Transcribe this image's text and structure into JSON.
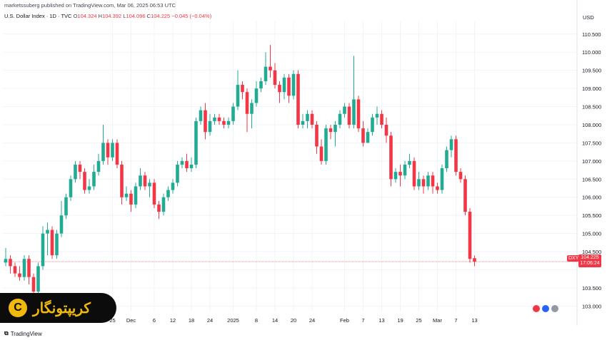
{
  "header": {
    "text": "marketssuberg published on TradingView.com, Mar 06, 2025 06:53 UTC"
  },
  "legend": {
    "symbol": "U.S. Dollar Index · 1D · TVC",
    "open_label": "O",
    "open": "104.324",
    "high_label": "H",
    "high": "104.392",
    "low_label": "L",
    "low": "104.096",
    "close_label": "C",
    "close": "104.225",
    "change": "−0.045 (−0.04%)"
  },
  "price_axis": {
    "currency": "USD"
  },
  "price_tag": {
    "symbol": "DXY",
    "price": "104.225",
    "countdown": "17:06:24"
  },
  "watermark": {
    "text": "کریپتونگار",
    "logo_glyph": "C"
  },
  "footer": {
    "brand": "TradingView",
    "brand_icon": "tv-logo-icon"
  },
  "colors": {
    "up": "#22ab94",
    "down": "#f23645",
    "grid": "#f0f3fa",
    "priceline": "#f23645"
  },
  "chart_data": {
    "type": "candlestick",
    "ylim": [
      102.85,
      110.85
    ],
    "yticks": [
      103.0,
      103.5,
      104.0,
      104.5,
      105.0,
      105.5,
      106.0,
      106.5,
      107.0,
      107.5,
      108.0,
      108.5,
      109.0,
      109.5,
      110.0,
      110.5
    ],
    "ytick_labels": [
      "103.000",
      "103.500",
      "",
      "104.500",
      "105.000",
      "105.500",
      "106.000",
      "106.500",
      "107.000",
      "107.500",
      "108.000",
      "108.500",
      "109.000",
      "109.500",
      "110.000",
      "110.500"
    ],
    "xticks": [
      {
        "label": "25",
        "index": 23
      },
      {
        "label": "Dec",
        "index": 27
      },
      {
        "label": "6",
        "index": 32
      },
      {
        "label": "12",
        "index": 36
      },
      {
        "label": "18",
        "index": 40
      },
      {
        "label": "24",
        "index": 44
      },
      {
        "label": "2025",
        "index": 49
      },
      {
        "label": "8",
        "index": 54
      },
      {
        "label": "14",
        "index": 58
      },
      {
        "label": "20",
        "index": 62
      },
      {
        "label": "24",
        "index": 66
      },
      {
        "label": "Feb",
        "index": 73
      },
      {
        "label": "7",
        "index": 77
      },
      {
        "label": "13",
        "index": 81
      },
      {
        "label": "19",
        "index": 85
      },
      {
        "label": "25",
        "index": 89
      },
      {
        "label": "Mar",
        "index": 93
      },
      {
        "label": "7",
        "index": 97
      },
      {
        "label": "13",
        "index": 101
      }
    ],
    "last_price": 104.225,
    "candles": [
      [
        104.2,
        104.3,
        104.6,
        104.1
      ],
      [
        104.3,
        104.1,
        104.4,
        103.9
      ],
      [
        104.1,
        103.9,
        104.2,
        103.8
      ],
      [
        103.9,
        103.8,
        104.1,
        103.7
      ],
      [
        103.8,
        104.3,
        104.4,
        103.7
      ],
      [
        104.3,
        103.8,
        104.4,
        103.6
      ],
      [
        103.8,
        103.4,
        103.9,
        103.3
      ],
      [
        103.4,
        104.1,
        104.2,
        103.3
      ],
      [
        104.1,
        105.0,
        105.2,
        104.0
      ],
      [
        105.0,
        105.1,
        105.3,
        104.4
      ],
      [
        105.1,
        104.4,
        105.2,
        104.3
      ],
      [
        104.4,
        105.0,
        105.1,
        104.3
      ],
      [
        105.0,
        105.5,
        105.9,
        104.9
      ],
      [
        105.5,
        106.0,
        106.1,
        105.4
      ],
      [
        106.0,
        106.5,
        106.6,
        105.9
      ],
      [
        106.5,
        106.9,
        107.0,
        106.4
      ],
      [
        106.9,
        106.7,
        107.0,
        106.5
      ],
      [
        106.7,
        106.2,
        106.8,
        106.1
      ],
      [
        106.2,
        106.3,
        106.5,
        106.1
      ],
      [
        106.3,
        106.7,
        106.9,
        106.2
      ],
      [
        106.7,
        107.0,
        107.2,
        106.6
      ],
      [
        107.0,
        107.5,
        108.0,
        106.9
      ],
      [
        107.5,
        107.1,
        107.6,
        106.9
      ],
      [
        107.1,
        107.5,
        107.6,
        107.0
      ],
      [
        107.5,
        106.9,
        107.6,
        106.8
      ],
      [
        106.9,
        106.0,
        107.0,
        105.8
      ],
      [
        106.0,
        106.1,
        106.3,
        105.9
      ],
      [
        106.1,
        105.8,
        106.2,
        105.6
      ],
      [
        105.8,
        106.3,
        106.4,
        105.7
      ],
      [
        106.3,
        106.6,
        106.8,
        106.2
      ],
      [
        106.6,
        106.3,
        106.7,
        106.2
      ],
      [
        106.3,
        106.4,
        106.5,
        106.0
      ],
      [
        106.4,
        105.8,
        106.5,
        105.7
      ],
      [
        105.8,
        105.6,
        105.9,
        105.4
      ],
      [
        105.6,
        106.0,
        106.1,
        105.5
      ],
      [
        106.0,
        106.2,
        106.3,
        105.9
      ],
      [
        106.2,
        106.4,
        106.5,
        106.1
      ],
      [
        106.4,
        106.9,
        107.0,
        106.3
      ],
      [
        106.9,
        107.0,
        107.1,
        106.8
      ],
      [
        107.0,
        106.8,
        107.2,
        106.7
      ],
      [
        106.8,
        106.9,
        107.1,
        106.7
      ],
      [
        106.9,
        108.1,
        108.2,
        106.8
      ],
      [
        108.1,
        108.4,
        108.5,
        108.0
      ],
      [
        108.4,
        107.8,
        108.6,
        107.6
      ],
      [
        107.8,
        108.1,
        108.3,
        107.7
      ],
      [
        108.1,
        108.2,
        108.3,
        108.0
      ],
      [
        108.2,
        108.1,
        108.3,
        108.0
      ],
      [
        108.1,
        108.0,
        108.2,
        107.9
      ],
      [
        108.0,
        108.1,
        108.2,
        107.9
      ],
      [
        108.1,
        108.5,
        108.6,
        108.0
      ],
      [
        108.5,
        109.1,
        109.5,
        108.4
      ],
      [
        109.1,
        108.9,
        109.2,
        108.7
      ],
      [
        108.9,
        108.3,
        109.0,
        107.8
      ],
      [
        108.3,
        108.6,
        108.7,
        107.9
      ],
      [
        108.6,
        109.0,
        109.2,
        108.5
      ],
      [
        109.0,
        109.2,
        109.3,
        108.9
      ],
      [
        109.2,
        109.6,
        110.0,
        109.1
      ],
      [
        109.6,
        109.5,
        110.2,
        109.3
      ],
      [
        109.5,
        109.1,
        109.7,
        109.0
      ],
      [
        109.1,
        108.9,
        109.2,
        108.6
      ],
      [
        108.9,
        109.3,
        109.4,
        108.7
      ],
      [
        109.3,
        108.8,
        109.4,
        108.6
      ],
      [
        108.8,
        109.4,
        109.5,
        108.7
      ],
      [
        109.4,
        108.0,
        109.5,
        107.9
      ],
      [
        108.0,
        108.1,
        108.3,
        107.9
      ],
      [
        108.1,
        108.3,
        108.4,
        107.9
      ],
      [
        108.3,
        108.0,
        108.4,
        107.9
      ],
      [
        108.0,
        107.4,
        108.1,
        107.2
      ],
      [
        107.4,
        107.0,
        107.6,
        106.9
      ],
      [
        107.0,
        107.9,
        108.0,
        106.9
      ],
      [
        107.9,
        107.8,
        108.0,
        107.6
      ],
      [
        107.8,
        108.0,
        108.1,
        107.4
      ],
      [
        108.0,
        108.3,
        108.4,
        107.9
      ],
      [
        108.3,
        108.5,
        108.6,
        108.2
      ],
      [
        108.5,
        108.0,
        108.6,
        107.9
      ],
      [
        108.0,
        108.7,
        109.9,
        107.9
      ],
      [
        108.7,
        107.9,
        108.8,
        107.8
      ],
      [
        107.9,
        107.5,
        108.1,
        107.4
      ],
      [
        107.5,
        107.8,
        107.9,
        107.5
      ],
      [
        107.8,
        108.2,
        108.3,
        107.7
      ],
      [
        108.2,
        108.3,
        108.5,
        108.0
      ],
      [
        108.3,
        108.0,
        108.4,
        107.9
      ],
      [
        108.0,
        107.7,
        108.2,
        107.5
      ],
      [
        107.7,
        106.5,
        107.8,
        106.3
      ],
      [
        106.5,
        106.7,
        106.8,
        106.4
      ],
      [
        106.7,
        106.6,
        106.9,
        106.3
      ],
      [
        106.6,
        106.9,
        107.0,
        106.5
      ],
      [
        106.9,
        107.0,
        107.2,
        106.8
      ],
      [
        107.0,
        106.3,
        107.1,
        106.2
      ],
      [
        106.3,
        106.5,
        106.7,
        106.2
      ],
      [
        106.5,
        106.3,
        106.6,
        106.1
      ],
      [
        106.3,
        106.6,
        106.7,
        106.2
      ],
      [
        106.6,
        106.3,
        106.7,
        106.1
      ],
      [
        106.3,
        106.2,
        106.4,
        106.1
      ],
      [
        106.2,
        106.8,
        106.9,
        106.1
      ],
      [
        106.8,
        107.3,
        107.4,
        106.7
      ],
      [
        107.3,
        107.6,
        107.7,
        107.1
      ],
      [
        107.6,
        106.7,
        107.7,
        106.6
      ],
      [
        106.7,
        106.5,
        106.8,
        106.4
      ],
      [
        106.5,
        105.6,
        106.6,
        105.5
      ],
      [
        105.6,
        104.3,
        105.7,
        104.2
      ],
      [
        104.32,
        104.225,
        104.39,
        104.1
      ]
    ]
  }
}
